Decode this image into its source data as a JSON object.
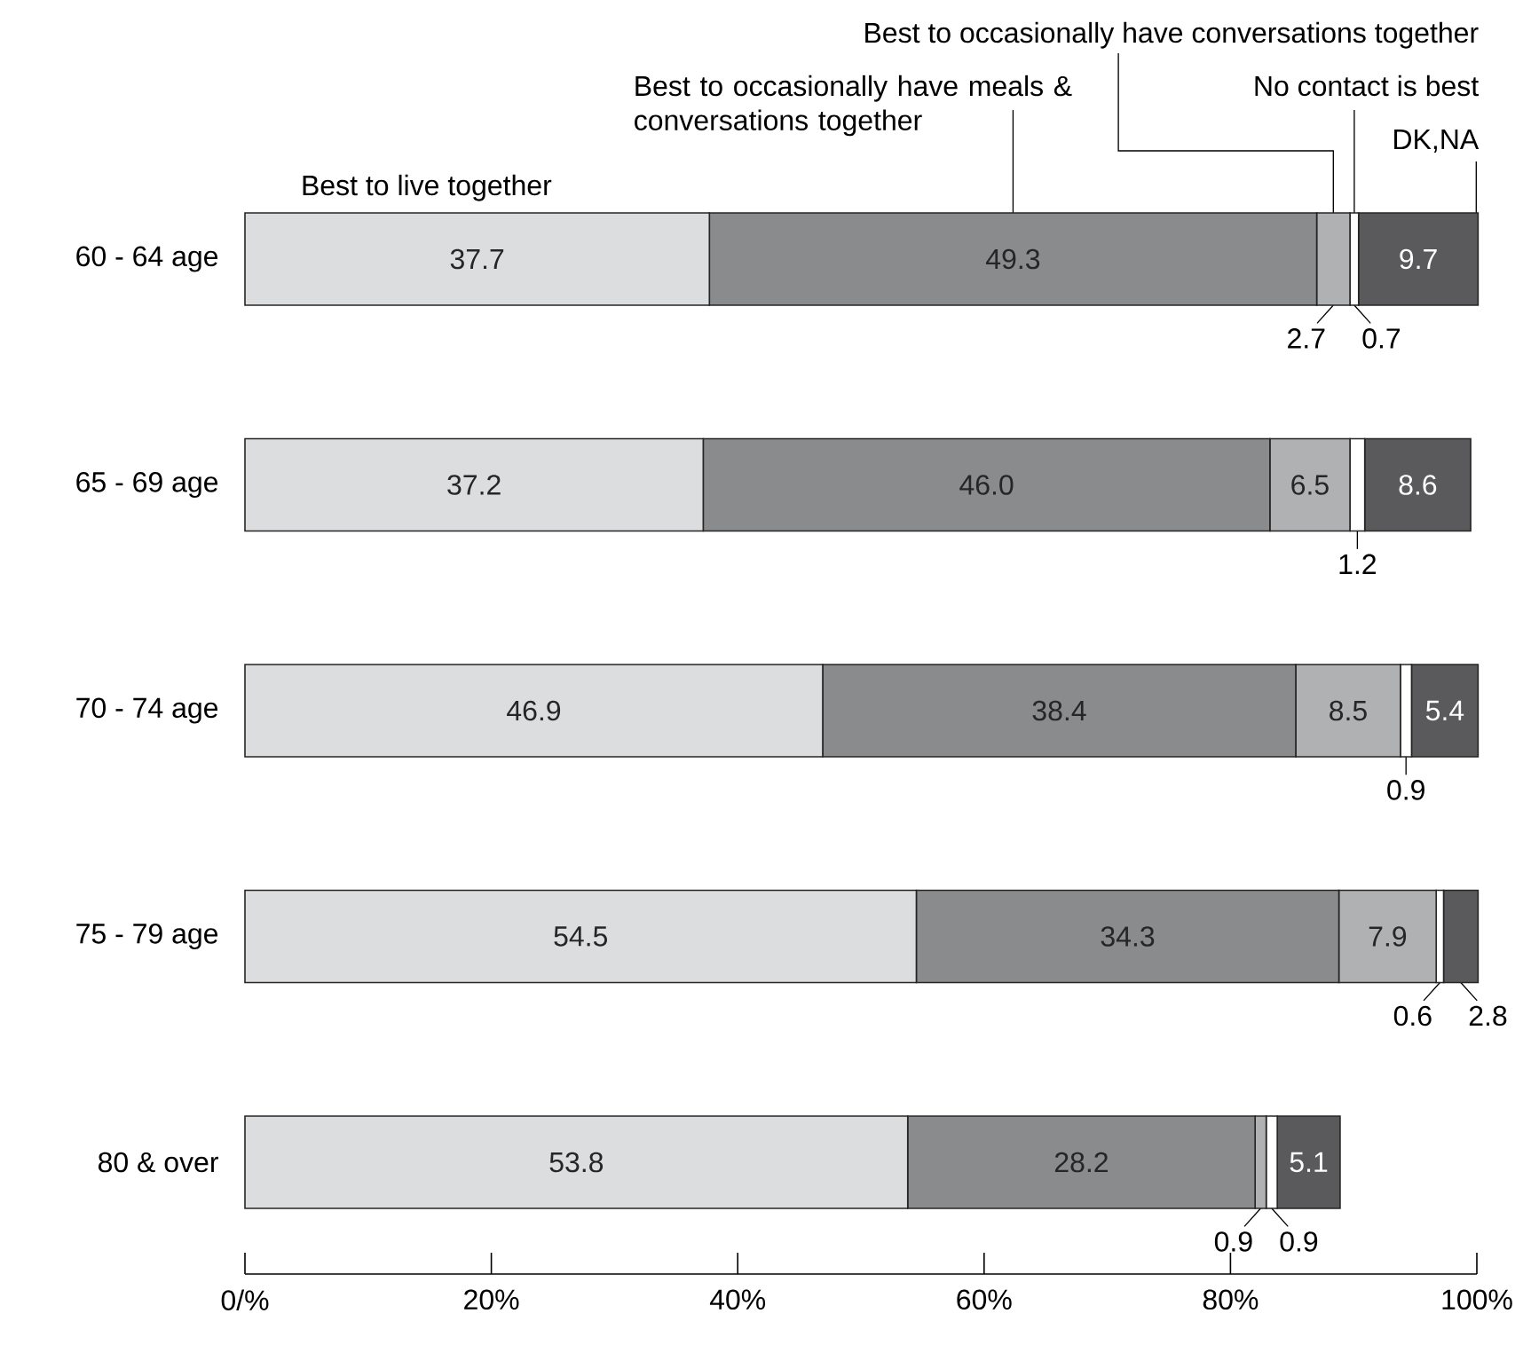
{
  "chart_data": {
    "type": "bar",
    "orientation": "horizontal",
    "stacked": true,
    "legend": false,
    "grid": false,
    "categories": [
      "60 - 64 age",
      "65 - 69 age",
      "70 - 74 age",
      "75 - 79 age",
      "80 & over"
    ],
    "xlim": [
      0,
      100
    ],
    "xticks": [
      {
        "value": 0,
        "label": "0/%"
      },
      {
        "value": 20,
        "label": "20%"
      },
      {
        "value": 40,
        "label": "40%"
      },
      {
        "value": 60,
        "label": "60%"
      },
      {
        "value": 80,
        "label": "80%"
      },
      {
        "value": 100,
        "label": "100%"
      }
    ],
    "series": [
      {
        "name": "Best to live together",
        "color": "#dcdddf",
        "values": [
          37.7,
          37.2,
          46.9,
          54.5,
          53.8
        ],
        "value_labels": [
          "37.7",
          "37.2",
          "46.9",
          "54.5",
          "53.8"
        ]
      },
      {
        "name": "Best to occasionally have meals & conversations together",
        "color": "#8a8b8d",
        "values": [
          49.3,
          46.0,
          38.4,
          34.3,
          28.2
        ],
        "value_labels": [
          "49.3",
          "46.0",
          "38.4",
          "34.3",
          "28.2"
        ]
      },
      {
        "name": "Best to occasionally have conversations together",
        "color": "#b0b1b3",
        "values": [
          2.7,
          6.5,
          8.5,
          7.9,
          0.9
        ],
        "value_labels": [
          "2.7",
          "6.5",
          "8.5",
          "7.9",
          "0.9"
        ]
      },
      {
        "name": "No contact is best",
        "color": "#ffffff",
        "values": [
          0.7,
          1.2,
          0.9,
          0.6,
          0.9
        ],
        "value_labels": [
          "0.7",
          "1.2",
          "0.9",
          "0.6",
          "0.9"
        ]
      },
      {
        "name": "DK,NA",
        "color": "#5a5a5c",
        "values": [
          9.7,
          8.6,
          5.4,
          2.8,
          5.1
        ],
        "value_labels": [
          "9.7",
          "8.6",
          "5.4",
          "2.8",
          "5.1"
        ]
      }
    ]
  }
}
